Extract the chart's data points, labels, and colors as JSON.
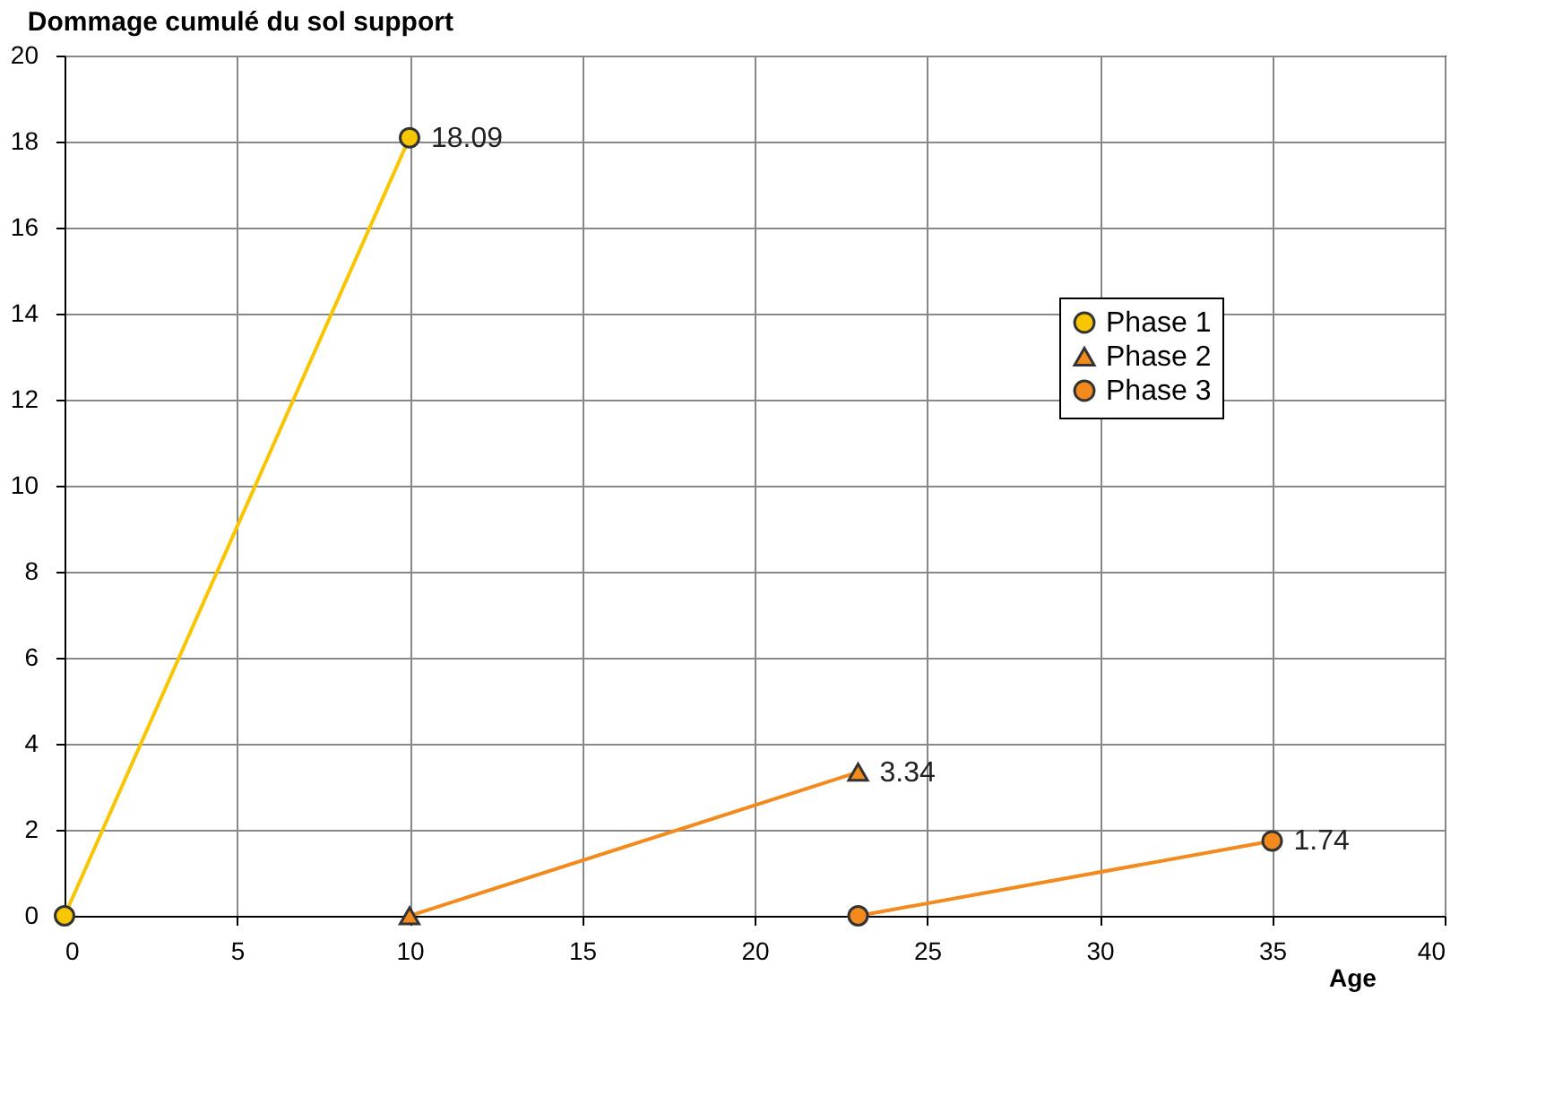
{
  "chart_data": {
    "type": "line",
    "title": "Dommage cumulé du sol support",
    "xlabel": "Age",
    "xlim": [
      0,
      40
    ],
    "xticks": [
      0,
      5,
      10,
      15,
      20,
      25,
      30,
      35,
      40
    ],
    "ylim": [
      0,
      20
    ],
    "yticks": [
      0,
      2,
      4,
      6,
      8,
      10,
      12,
      14,
      16,
      18,
      20
    ],
    "grid": true,
    "legend": "right",
    "series": [
      {
        "name": "Phase 1",
        "color": "#f7c600",
        "marker": "circle",
        "x": [
          0,
          10
        ],
        "values": [
          0,
          18.09
        ],
        "value_labels": [
          null,
          "18.09"
        ]
      },
      {
        "name": "Phase 2",
        "color": "#f28a1e",
        "marker": "triangle",
        "x": [
          10,
          23
        ],
        "values": [
          0,
          3.34
        ],
        "value_labels": [
          null,
          "3.34"
        ]
      },
      {
        "name": "Phase 3",
        "color": "#f28a1e",
        "marker": "circle",
        "x": [
          23,
          35
        ],
        "values": [
          0,
          1.74
        ],
        "value_labels": [
          null,
          "1.74"
        ]
      }
    ]
  }
}
